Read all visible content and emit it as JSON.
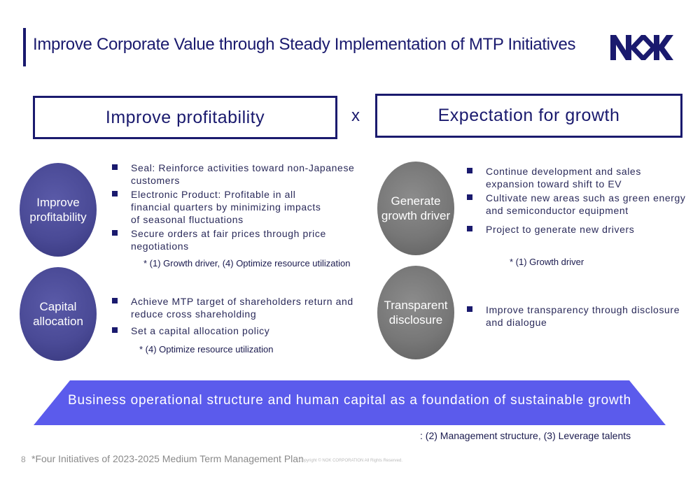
{
  "header": {
    "title": "Improve Corporate Value through Steady Implementation of MTP Initiatives",
    "logo_text": "NOK"
  },
  "boxes": {
    "left": "Improve profitability",
    "cross": "x",
    "right": "Expectation for growth"
  },
  "circles": {
    "profit": [
      "Improve",
      "profitability"
    ],
    "capital": [
      "Capital",
      "allocation"
    ],
    "growth": [
      "Generate",
      "growth driver"
    ],
    "transparent": [
      "Transparent",
      "disclosure"
    ]
  },
  "lists": {
    "profit": [
      [
        "Seal: Reinforce activities toward non-Japanese",
        "customers"
      ],
      [
        "Electronic Product: Profitable in all",
        "financial quarters by minimizing impacts",
        "of seasonal fluctuations"
      ],
      [
        "Secure orders at fair prices through price",
        "negotiations"
      ]
    ],
    "capital": [
      [
        "Achieve MTP target of shareholders return and",
        "reduce cross shareholding"
      ],
      [
        "Set a capital allocation policy"
      ]
    ],
    "growth": [
      [
        "Continue development and sales",
        "expansion toward shift to EV"
      ],
      [
        "Cultivate new areas such as green energy",
        "and semiconductor equipment"
      ],
      [
        "Project to generate new drivers"
      ]
    ],
    "transparent": [
      [
        "Improve transparency through disclosure",
        "and dialogue"
      ]
    ]
  },
  "notes": {
    "profit": "* (1) Growth driver, (4) Optimize resource utilization",
    "capital": "* (4) Optimize resource utilization",
    "growth": "* (1) Growth driver",
    "band": ": (2) Management structure, (3) Leverage talents"
  },
  "foundation": "Business operational structure and human capital as a foundation of sustainable growth",
  "footer": {
    "page_number": "8",
    "footnote": "*Four Initiatives of 2023-2025 Medium Term Management Plan",
    "copyright": "Copyright © NOK CORPORATION All Rights Reserved."
  },
  "colors": {
    "navy": "#1a1a6e",
    "circle_purple": "#4a4a96",
    "circle_grey": "#777777",
    "band": "#5b5bec"
  }
}
